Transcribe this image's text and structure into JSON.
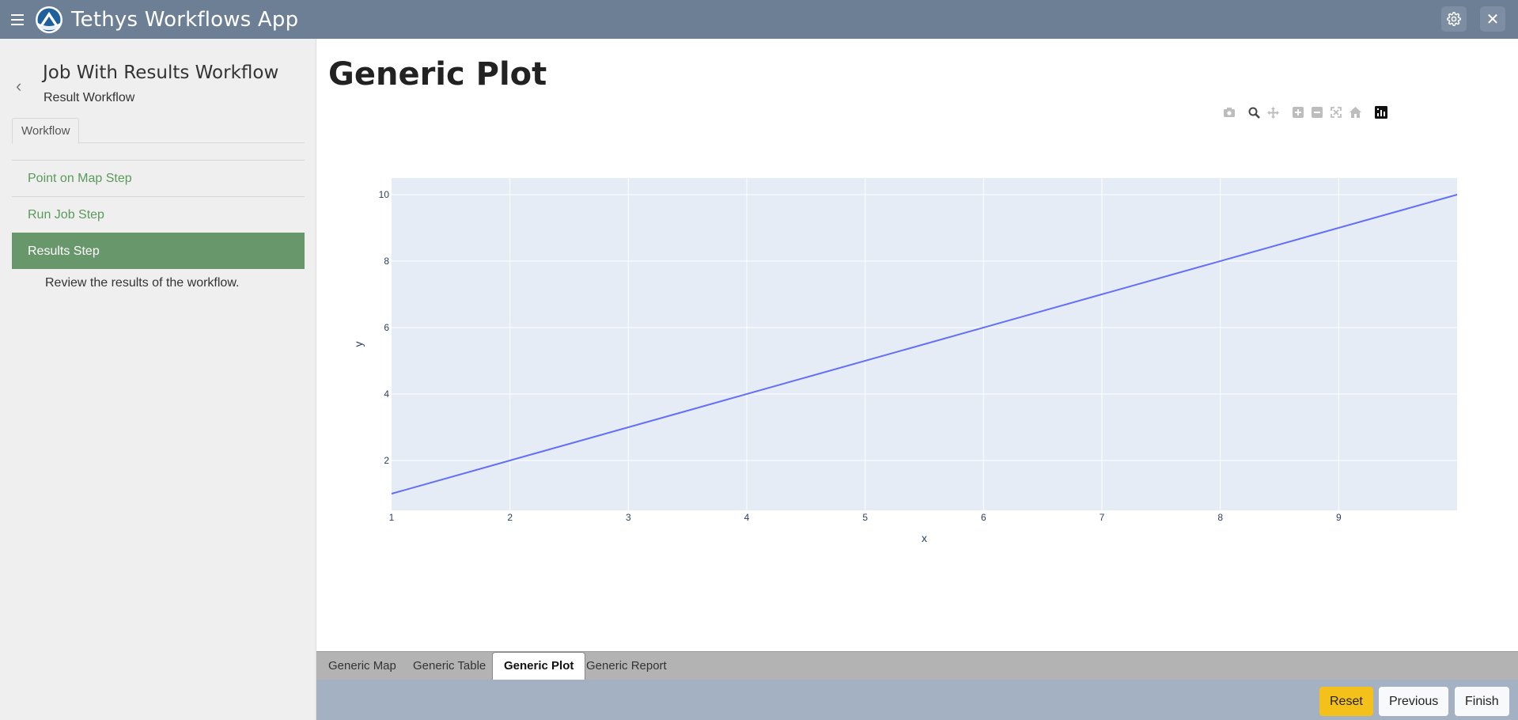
{
  "app": {
    "title": "Tethys Workflows App"
  },
  "header": {
    "settings_icon": "gear-icon",
    "close_icon": "close-icon",
    "close_glyph": "✕"
  },
  "sidebar": {
    "back_glyph": "‹",
    "workflow_title": "Job With Results Workflow",
    "workflow_subtitle": "Result Workflow",
    "tab_label": "Workflow",
    "steps": [
      {
        "label": "Point on Map Step"
      },
      {
        "label": "Run Job Step"
      },
      {
        "label": "Results Step",
        "active": true,
        "description": "Review the results of the workflow."
      }
    ]
  },
  "main": {
    "page_title": "Generic Plot"
  },
  "modebar": {
    "icons": [
      "camera-icon",
      "zoom-icon",
      "pan-icon",
      "zoom-in-icon",
      "zoom-out-icon",
      "autoscale-icon",
      "reset-axes-icon",
      "plotly-logo-icon"
    ]
  },
  "chart_data": {
    "type": "line",
    "x": [
      1,
      10
    ],
    "y": [
      1,
      10
    ],
    "xlabel": "x",
    "ylabel": "y",
    "xlim": [
      1,
      10
    ],
    "ylim": [
      0.5,
      10.5
    ],
    "xticks": [
      "1",
      "2",
      "3",
      "4",
      "5",
      "6",
      "7",
      "8",
      "9"
    ],
    "yticks": [
      "2",
      "4",
      "6",
      "8",
      "10"
    ],
    "line_color": "#636efa",
    "plot_bg": "#e5ecf6",
    "grid": true
  },
  "bottom_tabs": [
    {
      "label": "Generic Map"
    },
    {
      "label": "Generic Table"
    },
    {
      "label": "Generic Plot",
      "active": true
    },
    {
      "label": "Generic Report"
    }
  ],
  "footer": {
    "reset_label": "Reset",
    "previous_label": "Previous",
    "finish_label": "Finish",
    "reset_color": "#f4c01a"
  }
}
